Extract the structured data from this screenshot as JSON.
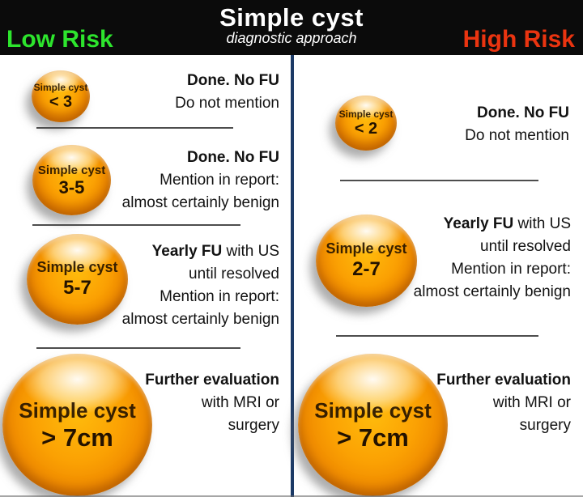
{
  "header": {
    "title": "Simple cyst",
    "subtitle": "diagnostic approach",
    "left_label": "Low Risk",
    "right_label": "High Risk"
  },
  "theme": {
    "header_bg": "#0b0b0b",
    "title_color": "#ffffff",
    "low_risk": "#2de52d",
    "high_risk": "#ea3410",
    "divider": "#1c3a66",
    "body_text": "#121212",
    "separator": "#4d4d4d",
    "sphere_text": "#231200",
    "sphere_orange": "#fba103"
  },
  "columns": {
    "left": {
      "rows": [
        {
          "sphere": {
            "line1": "Simple cyst",
            "line2": "< 3"
          },
          "lines": [
            {
              "b": "Done. No FU",
              "r": ""
            },
            {
              "b": "",
              "r": "Do not mention"
            }
          ]
        },
        {
          "sphere": {
            "line1": "Simple cyst",
            "line2": "3-5"
          },
          "lines": [
            {
              "b": "Done. No FU",
              "r": ""
            },
            {
              "b": "",
              "r": "Mention in report:"
            },
            {
              "b": "",
              "r": "almost certainly benign"
            }
          ]
        },
        {
          "sphere": {
            "line1": "Simple cyst",
            "line2": "5-7"
          },
          "lines": [
            {
              "b": "Yearly FU",
              "r": " with US"
            },
            {
              "b": "",
              "r": "until resolved"
            },
            {
              "b": "",
              "r": "Mention in report:"
            },
            {
              "b": "",
              "r": "almost certainly benign"
            }
          ]
        },
        {
          "sphere": {
            "line1": "Simple cyst",
            "line2": "> 7cm"
          },
          "lines": [
            {
              "b": "Further evaluation",
              "r": ""
            },
            {
              "b": "",
              "r": "with MRI or"
            },
            {
              "b": "",
              "r": "surgery"
            }
          ]
        }
      ]
    },
    "right": {
      "rows": [
        {
          "sphere": {
            "line1": "Simple cyst",
            "line2": "< 2"
          },
          "lines": [
            {
              "b": "Done. No FU",
              "r": ""
            },
            {
              "b": "",
              "r": "Do not mention"
            }
          ]
        },
        {
          "sphere": {
            "line1": "Simple cyst",
            "line2": "2-7"
          },
          "lines": [
            {
              "b": "Yearly FU",
              "r": " with US"
            },
            {
              "b": "",
              "r": "until resolved"
            },
            {
              "b": "",
              "r": "Mention in report:"
            },
            {
              "b": "",
              "r": "almost certainly benign"
            }
          ]
        },
        {
          "sphere": {
            "line1": "Simple cyst",
            "line2": "> 7cm"
          },
          "lines": [
            {
              "b": "Further evaluation",
              "r": ""
            },
            {
              "b": "",
              "r": "with MRI or"
            },
            {
              "b": "",
              "r": "surgery"
            }
          ]
        }
      ]
    }
  }
}
